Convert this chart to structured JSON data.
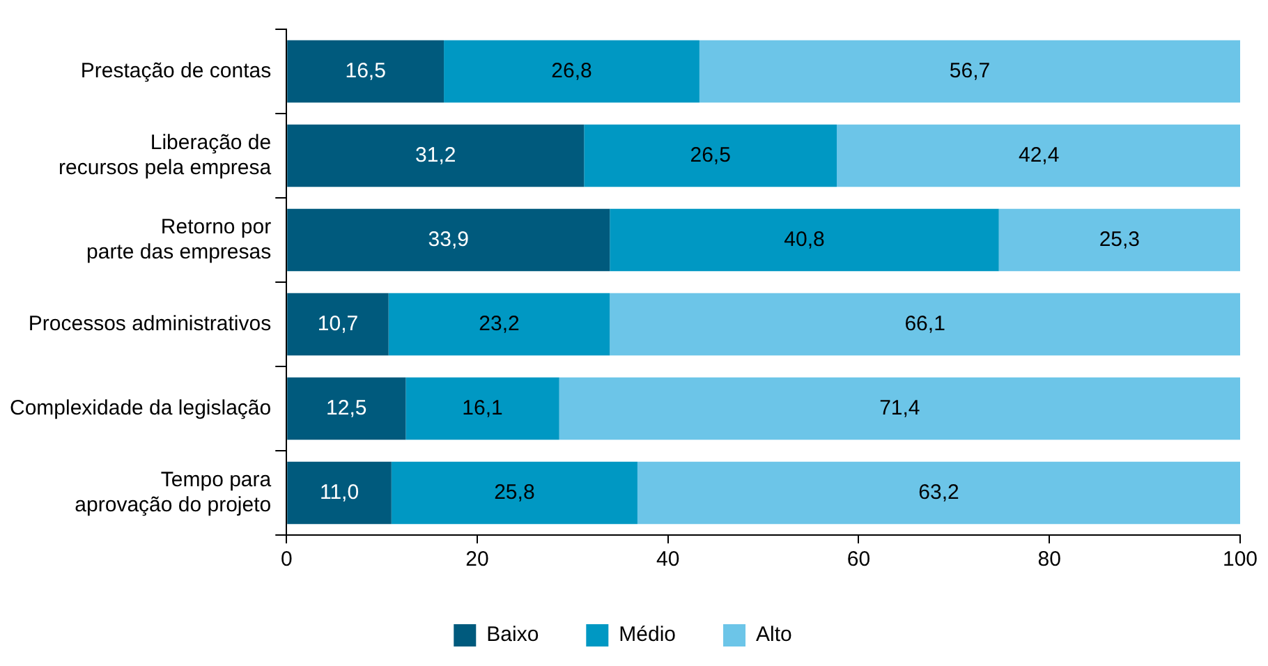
{
  "chart_data": {
    "type": "bar",
    "orientation": "horizontal",
    "stacked": true,
    "legend": "bottom",
    "grid": false,
    "categories": [
      "Prestação de contas",
      "Liberação de\nrecursos pela empresa",
      "Retorno por\nparte das empresas",
      "Processos administrativos",
      "Complexidade da legislação",
      "Tempo para\naprovação do projeto"
    ],
    "xlim": [
      0,
      100
    ],
    "xticks": [
      0,
      20,
      40,
      60,
      80,
      100
    ],
    "series": [
      {
        "name": "Baixo",
        "color": "#005a7d",
        "values": [
          16.5,
          31.2,
          33.9,
          10.7,
          12.5,
          11.0
        ],
        "value_labels": [
          "16,5",
          "31,2",
          "33,9",
          "10,7",
          "12,5",
          "11,0"
        ]
      },
      {
        "name": "Médio",
        "color": "#0098c3",
        "values": [
          26.8,
          26.5,
          40.8,
          23.2,
          16.1,
          25.8
        ],
        "value_labels": [
          "26,8",
          "26,5",
          "40,8",
          "23,2",
          "16,1",
          "25,8"
        ]
      },
      {
        "name": "Alto",
        "color": "#6cc5e8",
        "values": [
          56.7,
          42.4,
          25.3,
          66.1,
          71.4,
          63.2
        ],
        "value_labels": [
          "56,7",
          "42,4",
          "25,3",
          "66,1",
          "71,4",
          "63,2"
        ]
      }
    ]
  }
}
